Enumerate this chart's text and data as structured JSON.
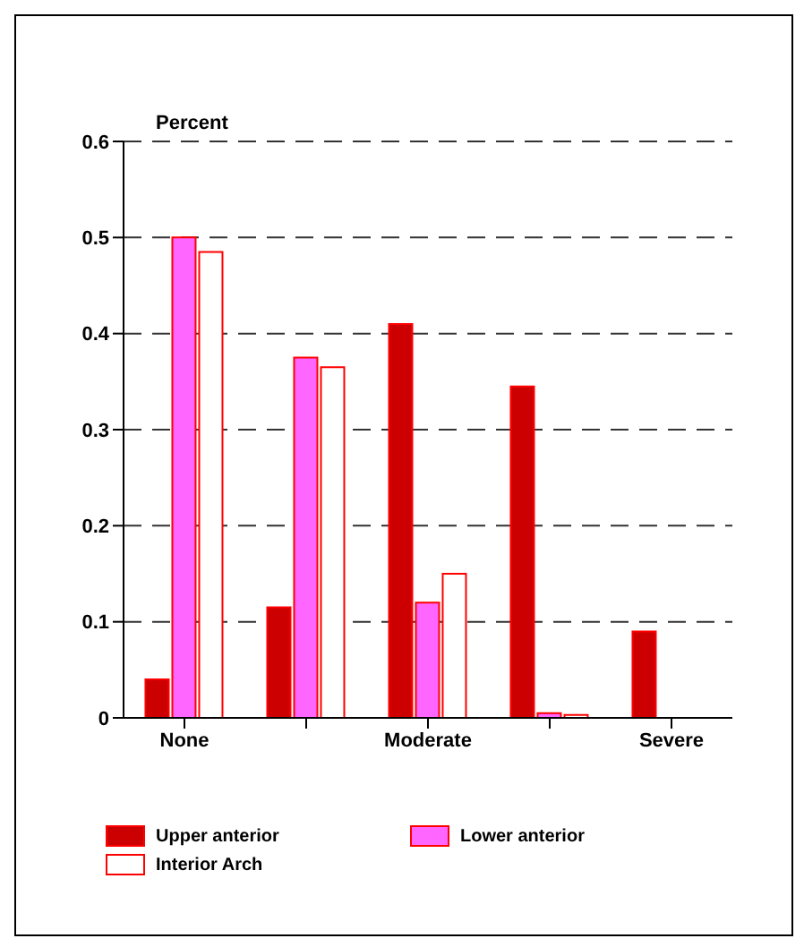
{
  "chart_data": {
    "type": "bar",
    "ylabel": "Percent",
    "categories": [
      "None",
      null,
      "Moderate",
      null,
      "Severe"
    ],
    "series": [
      {
        "name": "Upper anterior",
        "color": "#cc0000",
        "values": [
          0.04,
          0.115,
          0.41,
          0.345,
          0.09
        ]
      },
      {
        "name": "Lower anterior",
        "color": "#ff66ff",
        "values": [
          0.5,
          0.375,
          0.12,
          0.005,
          0
        ]
      },
      {
        "name": "Interior Arch",
        "color": "#ffffff",
        "values": [
          0.485,
          0.365,
          0.15,
          0.003,
          0
        ]
      }
    ],
    "ylim": [
      0,
      0.6
    ],
    "yticks": [
      0,
      0.1,
      0.2,
      0.3,
      0.4,
      0.5,
      0.6
    ],
    "grid": "y",
    "legend": "bottom"
  }
}
